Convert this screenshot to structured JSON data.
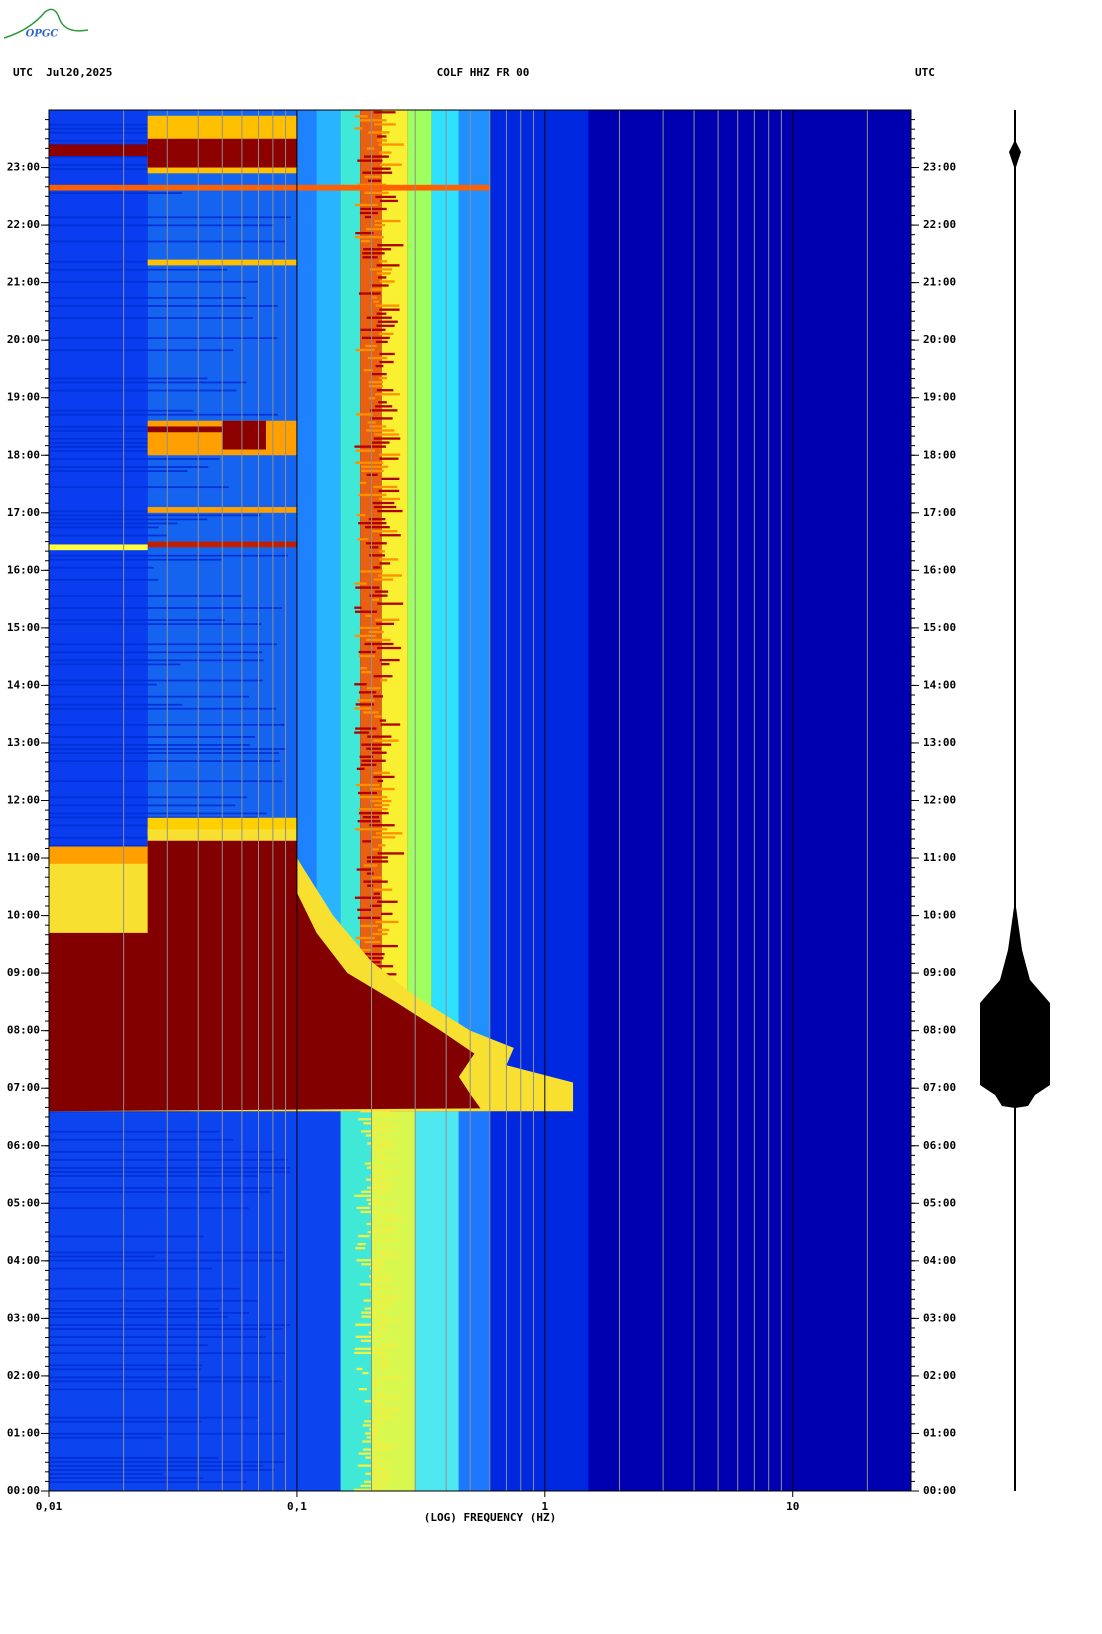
{
  "logo": "OPGC",
  "header": {
    "left": "UTC  Jul20,2025",
    "center": "COLF HHZ FR 00",
    "right": "UTC"
  },
  "chart_data": {
    "type": "spectrogram",
    "xlabel": "(LOG) FREQUENCY (HZ)",
    "xscale": "log",
    "xlim": [
      0.01,
      30
    ],
    "xticks": [
      {
        "value": 0.01,
        "label": "0,01"
      },
      {
        "value": 0.1,
        "label": "0,1"
      },
      1,
      10
    ],
    "ylim": [
      0,
      24
    ],
    "yticks": [
      {
        "value": 0,
        "label": "00:00"
      },
      {
        "value": 1,
        "label": "01:00"
      },
      {
        "value": 2,
        "label": "02:00"
      },
      {
        "value": 3,
        "label": "03:00"
      },
      {
        "value": 4,
        "label": "04:00"
      },
      {
        "value": 5,
        "label": "05:00"
      },
      {
        "value": 6,
        "label": "06:00"
      },
      {
        "value": 7,
        "label": "07:00"
      },
      {
        "value": 8,
        "label": "08:00"
      },
      {
        "value": 9,
        "label": "09:00"
      },
      {
        "value": 10,
        "label": "10:00"
      },
      {
        "value": 11,
        "label": "11:00"
      },
      {
        "value": 12,
        "label": "12:00"
      },
      {
        "value": 13,
        "label": "13:00"
      },
      {
        "value": 14,
        "label": "14:00"
      },
      {
        "value": 15,
        "label": "15:00"
      },
      {
        "value": 16,
        "label": "16:00"
      },
      {
        "value": 17,
        "label": "17:00"
      },
      {
        "value": 18,
        "label": "18:00"
      },
      {
        "value": 19,
        "label": "19:00"
      },
      {
        "value": 20,
        "label": "20:00"
      },
      {
        "value": 21,
        "label": "21:00"
      },
      {
        "value": 22,
        "label": "22:00"
      },
      {
        "value": 23,
        "label": "23:00"
      }
    ]
  }
}
